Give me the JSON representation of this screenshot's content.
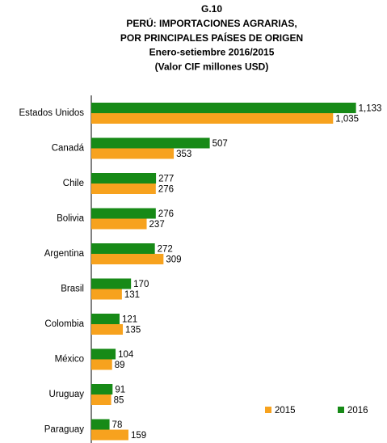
{
  "chart_data": {
    "type": "barh",
    "title": [
      "G.10",
      "PERÚ: IMPORTACIONES AGRARIAS,",
      "POR PRINCIPALES PAÍSES DE ORIGEN",
      "Enero-setiembre 2016/2015",
      "(Valor CIF millones USD)"
    ],
    "categories": [
      "Estados Unidos",
      "Canadá",
      "Chile",
      "Bolivia",
      "Argentina",
      "Brasil",
      "Colombia",
      "México",
      "Uruguay",
      "Paraguay"
    ],
    "series": [
      {
        "name": "2016",
        "color": "#178a17",
        "values": [
          1133,
          507,
          277,
          276,
          272,
          170,
          121,
          104,
          91,
          78
        ],
        "value_labels": [
          "1,133",
          "507",
          "277",
          "276",
          "272",
          "170",
          "121",
          "104",
          "91",
          "78"
        ]
      },
      {
        "name": "2015",
        "color": "#f7a21e",
        "values": [
          1035,
          353,
          276,
          237,
          309,
          131,
          135,
          89,
          85,
          159
        ],
        "value_labels": [
          "1,035",
          "353",
          "276",
          "237",
          "309",
          "131",
          "135",
          "89",
          "85",
          "159"
        ]
      }
    ],
    "xlim": [
      0,
      1200
    ],
    "legend": "lower right"
  }
}
